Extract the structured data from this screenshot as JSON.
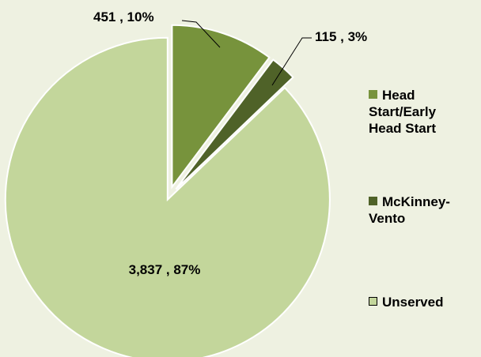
{
  "chart_data": {
    "type": "pie",
    "categories": [
      "Head Start/Early Head Start",
      "McKinney-Vento",
      "Unserved"
    ],
    "values": [
      451,
      115,
      3837
    ],
    "value_labels": [
      "451 , 10%",
      "115 , 3%",
      "3,837 , 87%"
    ],
    "colors": [
      "#77933c",
      "#4f6228",
      "#c3d69b"
    ],
    "legend": "right"
  }
}
